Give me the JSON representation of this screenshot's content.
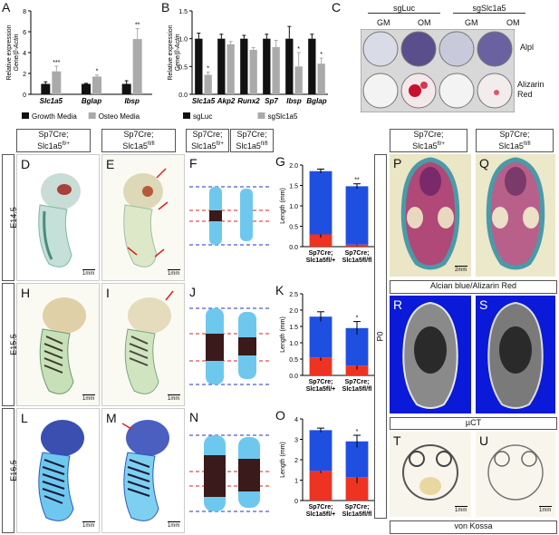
{
  "panels": {
    "A": "A",
    "B": "B",
    "C": "C",
    "D": "D",
    "E": "E",
    "F": "F",
    "G": "G",
    "H": "H",
    "I": "I",
    "J": "J",
    "K": "K",
    "L": "L",
    "M": "M",
    "N": "N",
    "O": "O",
    "P": "P",
    "Q": "Q",
    "R": "R",
    "S": "S",
    "T": "T",
    "U": "U"
  },
  "headers": {
    "het": "Sp7Cre;\nSlc1a5fl/+",
    "hom": "Sp7Cre;\nSlc1a5fl/fl",
    "het_line1": "Sp7Cre;",
    "het_line2": "Slc1a5",
    "het_sup": "fl/+",
    "hom_line1": "Sp7Cre;",
    "hom_line2": "Slc1a5",
    "hom_sup": "fl/fl"
  },
  "stages": {
    "e145": "E14.5",
    "e155": "E15.5",
    "e165": "E16.5",
    "p0": "P0"
  },
  "scalebars": {
    "mm1": "1mm",
    "mm2": "2mm"
  },
  "captions": {
    "alcian": "Alcian blue/Alizarin Red",
    "uct": "µCT",
    "vonkossa": "von Kossa"
  },
  "colors": {
    "blue": "#1f4fe0",
    "red": "#ee3322",
    "dark_bar": "#111111",
    "light_bar": "#aaaaaa",
    "dash_blue": "#2233cc",
    "dash_red": "#dd2222"
  },
  "panel_c": {
    "col_sgluc": "sgLuc",
    "col_sgslc": "sgSlc1a5",
    "gm": "GM",
    "om": "OM",
    "row1": "Alpl",
    "row2_l1": "Alizarin",
    "row2_l2": "Red"
  },
  "chart_data": [
    {
      "id": "A",
      "type": "bar",
      "categories": [
        "Slc1a5",
        "Bglap",
        "Ibsp"
      ],
      "series": [
        {
          "name": "Growth Media",
          "values": [
            1.0,
            1.0,
            1.0
          ],
          "errors": [
            0.2,
            0.05,
            0.3
          ]
        },
        {
          "name": "Osteo Media",
          "values": [
            2.2,
            1.7,
            5.3
          ],
          "errors": [
            0.5,
            0.15,
            1.0
          ]
        }
      ],
      "significance": [
        "***",
        "*",
        "**"
      ],
      "ylabel_l1": "Relative expression",
      "ylabel_l2": "Gene/β-Actin",
      "ylim": [
        0,
        8
      ],
      "yticks": [
        0,
        2,
        4,
        6,
        8
      ],
      "legend": "bottom"
    },
    {
      "id": "B",
      "type": "bar",
      "categories": [
        "Slc1a5",
        "Akp2",
        "Runx2",
        "Sp7",
        "Ibsp",
        "Bglap"
      ],
      "series": [
        {
          "name": "sgLuc",
          "values": [
            1.0,
            1.0,
            1.0,
            1.0,
            1.0,
            1.0
          ],
          "errors": [
            0.1,
            0.08,
            0.06,
            0.08,
            0.22,
            0.08
          ]
        },
        {
          "name": "sgSlc1a5",
          "values": [
            0.35,
            0.9,
            0.8,
            0.85,
            0.5,
            0.55
          ],
          "errors": [
            0.05,
            0.05,
            0.04,
            0.12,
            0.25,
            0.1
          ]
        }
      ],
      "significance": [
        "*",
        "",
        "",
        "",
        "*",
        "*"
      ],
      "ylabel_l1": "Relative expression",
      "ylabel_l2": "Gene/β-Actin",
      "ylim": [
        0,
        1.5
      ],
      "yticks": [
        0.0,
        0.5,
        1.0,
        1.5
      ],
      "legend": "bottom"
    },
    {
      "id": "G",
      "type": "bar",
      "stacked": true,
      "categories": [
        "Sp7Cre;\nSlc1a5fl/+",
        "Sp7Cre;\nSlc1a5fl/fl"
      ],
      "series": [
        {
          "name": "red",
          "values": [
            0.3,
            0.05
          ],
          "errors": [
            0.08,
            0.02
          ]
        },
        {
          "name": "blue",
          "values": [
            1.55,
            1.43
          ],
          "errors": [
            0.05,
            0.06
          ]
        }
      ],
      "significance": [
        "",
        "**"
      ],
      "ylabel": "Length (mm)",
      "ylim": [
        0,
        2.0
      ],
      "yticks": [
        0.0,
        0.5,
        1.0,
        1.5,
        2.0
      ]
    },
    {
      "id": "K",
      "type": "bar",
      "stacked": true,
      "categories": [
        "Sp7Cre;\nSlc1a5fl/+",
        "Sp7Cre;\nSlc1a5fl/fl"
      ],
      "series": [
        {
          "name": "red",
          "values": [
            0.55,
            0.3
          ],
          "errors": [
            0.1,
            0.12
          ]
        },
        {
          "name": "blue",
          "values": [
            1.25,
            1.15
          ],
          "errors": [
            0.15,
            0.2
          ]
        }
      ],
      "significance": [
        "",
        "*"
      ],
      "ylabel": "Length (mm)",
      "ylim": [
        0,
        2.5
      ],
      "yticks": [
        0.0,
        0.5,
        1.0,
        1.5,
        2.0,
        2.5
      ]
    },
    {
      "id": "O",
      "type": "bar",
      "stacked": true,
      "categories": [
        "Sp7Cre;\nSlc1a5fl/+",
        "Sp7Cre;\nSlc1a5fl/fl"
      ],
      "series": [
        {
          "name": "red",
          "values": [
            1.45,
            1.15
          ],
          "errors": [
            0.1,
            0.3
          ]
        },
        {
          "name": "blue",
          "values": [
            2.0,
            1.75
          ],
          "errors": [
            0.1,
            0.3
          ]
        }
      ],
      "significance": [
        "",
        "*"
      ],
      "ylabel": "Length (mm)",
      "ylim": [
        0,
        4
      ],
      "yticks": [
        0,
        1,
        2,
        3,
        4
      ]
    }
  ]
}
